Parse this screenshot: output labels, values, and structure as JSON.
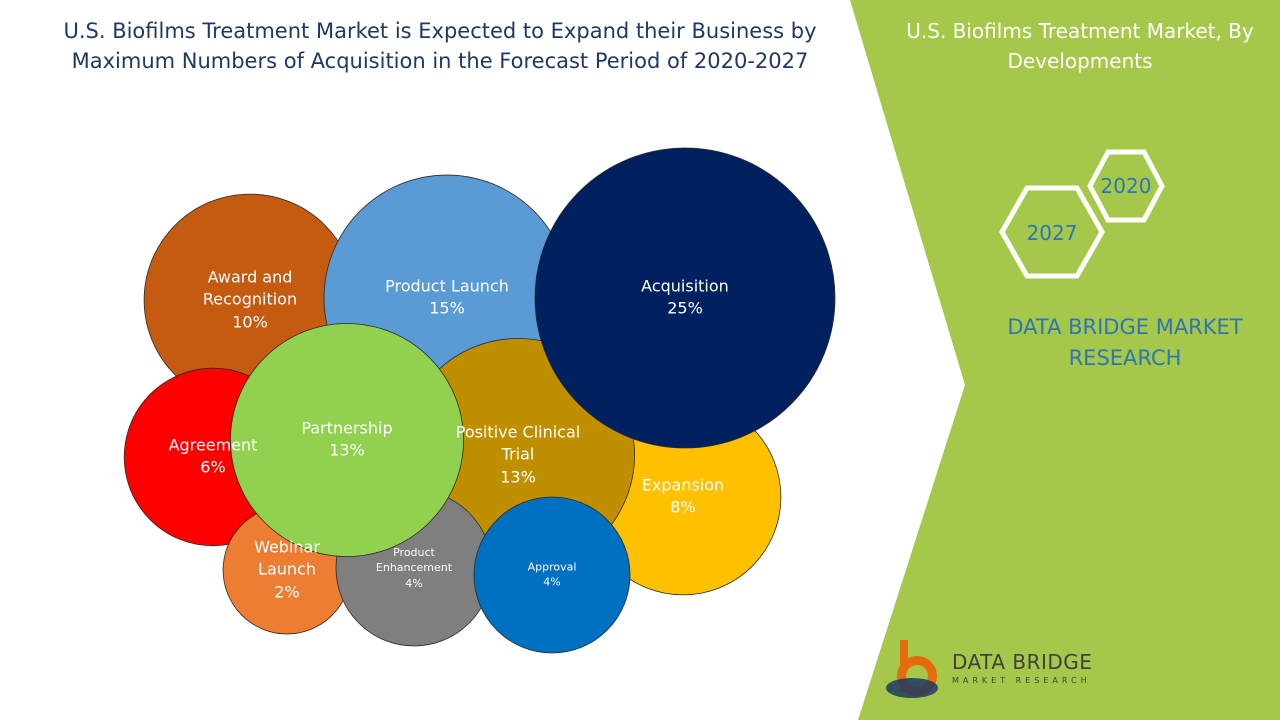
{
  "chart_data": {
    "type": "bubble",
    "title": "U.S. Biofilms Treatment Market is Expected to Expand their Business by Maximum Numbers of Acquisition in the Forecast Period of 2020-2027",
    "categories": [
      "Award and Recognition",
      "Product Launch",
      "Acquisition",
      "Agreement",
      "Partnership",
      "Positive Clinical Trial",
      "Expansion",
      "Webinar Launch",
      "Product Enhancement",
      "Approval"
    ],
    "values": [
      10,
      15,
      25,
      6,
      13,
      13,
      8,
      2,
      4,
      4
    ],
    "value_labels": [
      "10%",
      "15%",
      "25%",
      "6%",
      "13%",
      "13%",
      "8%",
      "2%",
      "4%",
      "4%"
    ],
    "colors": [
      "#c55a11",
      "#5b9bd5",
      "#002060",
      "#ff0000",
      "#92d050",
      "#bf8f00",
      "#ffc000",
      "#ed7d31",
      "#7f7f7f",
      "#0070c0"
    ]
  },
  "side_panel": {
    "title": "U.S. Biofilms Treatment Market, By Developments",
    "years": [
      "2020",
      "2027"
    ],
    "brand": "DATA BRIDGE MARKET RESEARCH"
  },
  "logo": {
    "name": "DATA BRIDGE",
    "tagline": "MARKET RESEARCH"
  }
}
